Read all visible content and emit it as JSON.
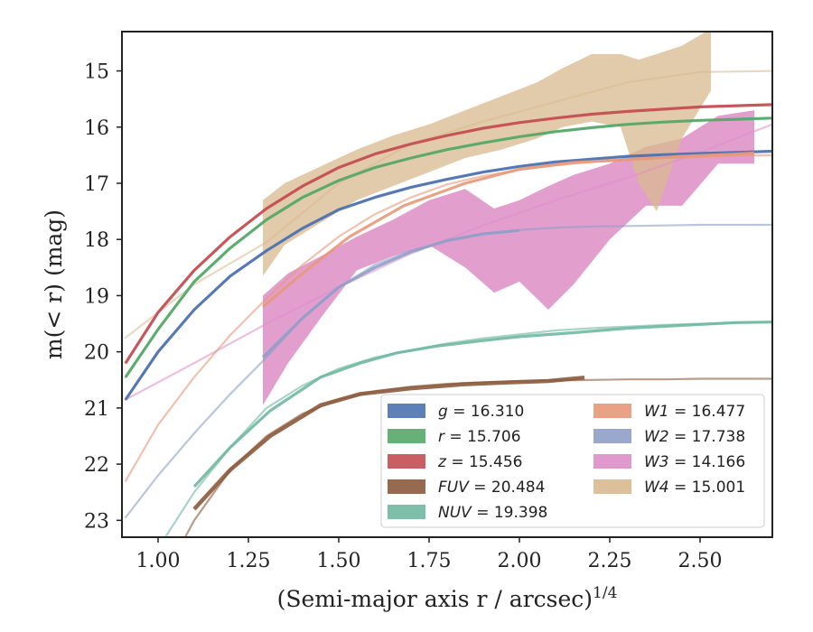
{
  "chart_data": {
    "type": "line",
    "title": "",
    "xlabel": "(Semi-major axis r / arcsec)",
    "xlabel_super": "1/4",
    "ylabel": "m(< r) (mag)",
    "xlim": [
      0.9,
      2.7
    ],
    "ylim": [
      23.3,
      14.3
    ],
    "y_inverted": true,
    "grid": false,
    "legend_position": "lower-right",
    "legend_columns": 2,
    "xticks": [
      "1.00",
      "1.25",
      "1.50",
      "1.75",
      "2.00",
      "2.25",
      "2.50"
    ],
    "xtick_values": [
      1.0,
      1.25,
      1.5,
      1.75,
      2.0,
      2.25,
      2.5
    ],
    "yticks": [
      "15",
      "16",
      "17",
      "18",
      "19",
      "20",
      "21",
      "22",
      "23"
    ],
    "ytick_values": [
      15,
      16,
      17,
      18,
      19,
      20,
      21,
      22,
      23
    ],
    "series": [
      {
        "key": "g",
        "band": "g",
        "value": "16.310",
        "color": "#4c72b0",
        "style": "line",
        "model_x": [
          0.91,
          1.0,
          1.1,
          1.2,
          1.3,
          1.4,
          1.5,
          1.6,
          1.7,
          1.8,
          1.9,
          2.0,
          2.1,
          2.2,
          2.3,
          2.4,
          2.5,
          2.6,
          2.7
        ],
        "model_y": [
          20.85,
          20.0,
          19.25,
          18.65,
          18.2,
          17.8,
          17.47,
          17.25,
          17.07,
          16.93,
          16.8,
          16.7,
          16.62,
          16.57,
          16.52,
          16.49,
          16.47,
          16.45,
          16.43
        ],
        "data_x": [
          0.91,
          1.0,
          1.1,
          1.2,
          1.3,
          1.4,
          1.5,
          1.6,
          1.7,
          1.8,
          1.9,
          2.0,
          2.1,
          2.2,
          2.3,
          2.4,
          2.5,
          2.6,
          2.7
        ],
        "data_y": [
          20.85,
          20.0,
          19.25,
          18.65,
          18.2,
          17.8,
          17.47,
          17.25,
          17.07,
          16.93,
          16.8,
          16.7,
          16.62,
          16.57,
          16.52,
          16.49,
          16.47,
          16.45,
          16.43
        ]
      },
      {
        "key": "r",
        "band": "r",
        "value": "15.706",
        "color": "#55a868",
        "style": "line",
        "model_x": [
          0.91,
          1.0,
          1.1,
          1.2,
          1.3,
          1.4,
          1.5,
          1.6,
          1.7,
          1.8,
          1.9,
          2.0,
          2.1,
          2.2,
          2.3,
          2.4,
          2.5,
          2.6,
          2.7
        ],
        "model_y": [
          20.45,
          19.6,
          18.75,
          18.15,
          17.65,
          17.25,
          16.95,
          16.72,
          16.55,
          16.4,
          16.28,
          16.17,
          16.08,
          16.01,
          15.95,
          15.91,
          15.88,
          15.86,
          15.84
        ],
        "data_x": [
          0.91,
          1.0,
          1.1,
          1.2,
          1.3,
          1.4,
          1.5,
          1.6,
          1.7,
          1.8,
          1.9,
          2.0,
          2.1,
          2.2,
          2.3,
          2.4,
          2.5,
          2.6,
          2.7
        ],
        "data_y": [
          20.45,
          19.6,
          18.75,
          18.15,
          17.65,
          17.25,
          16.95,
          16.72,
          16.55,
          16.4,
          16.28,
          16.17,
          16.08,
          16.01,
          15.95,
          15.91,
          15.88,
          15.86,
          15.84
        ]
      },
      {
        "key": "z",
        "band": "z",
        "value": "15.456",
        "color": "#c44e52",
        "style": "line",
        "model_x": [
          0.91,
          1.0,
          1.1,
          1.2,
          1.3,
          1.4,
          1.5,
          1.6,
          1.7,
          1.8,
          1.9,
          2.0,
          2.1,
          2.2,
          2.3,
          2.4,
          2.5,
          2.6,
          2.7
        ],
        "model_y": [
          20.2,
          19.3,
          18.55,
          17.95,
          17.45,
          17.05,
          16.72,
          16.48,
          16.3,
          16.15,
          16.02,
          15.92,
          15.84,
          15.77,
          15.72,
          15.68,
          15.64,
          15.62,
          15.6
        ],
        "data_x": [
          0.91,
          1.0,
          1.1,
          1.2,
          1.3,
          1.4,
          1.5,
          1.6,
          1.7,
          1.8,
          1.9,
          2.0,
          2.1,
          2.2,
          2.3,
          2.4,
          2.5,
          2.6,
          2.7
        ],
        "data_y": [
          20.2,
          19.3,
          18.55,
          17.95,
          17.45,
          17.05,
          16.72,
          16.48,
          16.3,
          16.15,
          16.02,
          15.92,
          15.84,
          15.77,
          15.72,
          15.68,
          15.64,
          15.62,
          15.6
        ]
      },
      {
        "key": "fuv",
        "band": "FUV",
        "value": "20.484",
        "color": "#8c5a3c",
        "style": "line",
        "model_x": [
          1.05,
          1.1,
          1.2,
          1.3,
          1.4,
          1.5,
          1.6,
          1.7,
          1.8,
          1.9,
          2.0,
          2.1,
          2.2,
          2.3,
          2.4,
          2.5,
          2.6,
          2.7
        ],
        "model_y": [
          23.6,
          23.0,
          22.1,
          21.5,
          21.1,
          20.85,
          20.7,
          20.62,
          20.57,
          20.54,
          20.52,
          20.51,
          20.5,
          20.49,
          20.49,
          20.48,
          20.48,
          20.48
        ],
        "data_x": [
          1.1,
          1.2,
          1.31,
          1.45,
          1.56,
          1.7,
          1.84,
          1.95,
          2.08,
          2.18
        ],
        "data_y": [
          22.8,
          22.1,
          21.5,
          20.95,
          20.75,
          20.65,
          20.58,
          20.55,
          20.52,
          20.46
        ]
      },
      {
        "key": "nuv",
        "band": "NUV",
        "value": "19.398",
        "color": "#6fb89f",
        "style": "line",
        "model_x": [
          1.02,
          1.1,
          1.2,
          1.3,
          1.4,
          1.5,
          1.6,
          1.7,
          1.8,
          1.9,
          2.0,
          2.1,
          2.2,
          2.3,
          2.4,
          2.5,
          2.6,
          2.7
        ],
        "model_y": [
          23.3,
          22.5,
          21.7,
          21.0,
          20.6,
          20.3,
          20.1,
          19.97,
          19.85,
          19.76,
          19.69,
          19.62,
          19.58,
          19.55,
          19.52,
          19.5,
          19.48,
          19.47
        ],
        "data_x": [
          1.1,
          1.2,
          1.31,
          1.45,
          1.56,
          1.66,
          1.77,
          1.9,
          2.0,
          2.15,
          2.3,
          2.45,
          2.6,
          2.7
        ],
        "data_y": [
          22.4,
          21.7,
          21.05,
          20.45,
          20.2,
          20.02,
          19.9,
          19.8,
          19.73,
          19.66,
          19.58,
          19.53,
          19.48,
          19.47
        ]
      },
      {
        "key": "w1",
        "band": "W1",
        "value": "16.477",
        "color": "#e8987a",
        "style": "line",
        "model_x": [
          0.91,
          1.0,
          1.1,
          1.2,
          1.3,
          1.4,
          1.5,
          1.6,
          1.7,
          1.8,
          1.9,
          2.0,
          2.1,
          2.2,
          2.3,
          2.4,
          2.5,
          2.6,
          2.7
        ],
        "model_y": [
          22.3,
          21.3,
          20.45,
          19.7,
          19.05,
          18.45,
          17.95,
          17.55,
          17.25,
          17.02,
          16.87,
          16.76,
          16.68,
          16.62,
          16.58,
          16.55,
          16.53,
          16.51,
          16.5
        ],
        "data_x": [
          1.29,
          1.4,
          1.53,
          1.68,
          1.85,
          2.0,
          2.15,
          2.3,
          2.45,
          2.6,
          2.65
        ],
        "data_y": [
          19.2,
          18.6,
          17.95,
          17.4,
          17.0,
          16.75,
          16.63,
          16.58,
          16.52,
          16.48,
          16.46
        ]
      },
      {
        "key": "w2",
        "band": "W2",
        "value": "17.738",
        "color": "#8f9fc8",
        "style": "line",
        "model_x": [
          0.91,
          1.0,
          1.1,
          1.2,
          1.3,
          1.4,
          1.5,
          1.6,
          1.7,
          1.8,
          1.9,
          2.0,
          2.1,
          2.2,
          2.3,
          2.4,
          2.5,
          2.6,
          2.7
        ],
        "model_y": [
          22.95,
          22.2,
          21.45,
          20.75,
          20.1,
          19.4,
          18.85,
          18.45,
          18.2,
          18.02,
          17.9,
          17.83,
          17.79,
          17.77,
          17.76,
          17.75,
          17.74,
          17.74,
          17.74
        ],
        "data_x": [
          1.29,
          1.4,
          1.5,
          1.6,
          1.7,
          1.8,
          1.9,
          2.0
        ],
        "data_y": [
          20.1,
          19.4,
          18.85,
          18.5,
          18.22,
          18.02,
          17.9,
          17.84
        ]
      },
      {
        "key": "w3",
        "band": "W3",
        "value": "14.166",
        "color": "#dd8ec6",
        "style": "band",
        "model_x": [
          0.91,
          1.1,
          1.3,
          1.5,
          1.7,
          1.9,
          2.1,
          2.3,
          2.5,
          2.7
        ],
        "model_y": [
          20.85,
          20.2,
          19.5,
          18.85,
          18.25,
          17.75,
          17.3,
          16.9,
          16.45,
          15.95
        ],
        "band_x": [
          1.29,
          1.36,
          1.45,
          1.55,
          1.65,
          1.75,
          1.85,
          1.93,
          2.0,
          2.08,
          2.15,
          2.25,
          2.35,
          2.45,
          2.55,
          2.65
        ],
        "band_lo": [
          19.0,
          18.6,
          18.3,
          17.95,
          17.65,
          17.3,
          17.1,
          17.45,
          17.3,
          17.05,
          16.85,
          16.65,
          16.35,
          16.2,
          15.8,
          15.7
        ],
        "band_hi": [
          20.95,
          20.2,
          19.4,
          18.55,
          18.3,
          18.1,
          18.5,
          18.95,
          18.75,
          19.25,
          18.8,
          18.0,
          17.4,
          17.4,
          16.65,
          16.65
        ]
      },
      {
        "key": "w4",
        "band": "W4",
        "value": "15.001",
        "color": "#d8b98f",
        "style": "band",
        "model_x": [
          0.91,
          1.1,
          1.3,
          1.5,
          1.7,
          1.9,
          2.1,
          2.3,
          2.5,
          2.7
        ],
        "model_y": [
          19.75,
          18.8,
          18.05,
          17.0,
          16.3,
          15.9,
          15.55,
          15.2,
          15.02,
          15.0
        ],
        "band_x": [
          1.29,
          1.35,
          1.45,
          1.55,
          1.65,
          1.75,
          1.85,
          1.95,
          2.05,
          2.12,
          2.2,
          2.28,
          2.33,
          2.38,
          2.45,
          2.53
        ],
        "band_lo": [
          17.3,
          17.0,
          16.7,
          16.4,
          16.15,
          15.95,
          15.7,
          15.45,
          15.2,
          14.95,
          14.7,
          14.7,
          14.8,
          14.7,
          14.55,
          14.25
        ],
        "band_hi": [
          18.65,
          18.1,
          17.7,
          17.3,
          17.05,
          16.8,
          16.55,
          16.4,
          16.2,
          16.0,
          15.9,
          16.0,
          17.0,
          17.5,
          16.2,
          15.35
        ]
      }
    ]
  }
}
